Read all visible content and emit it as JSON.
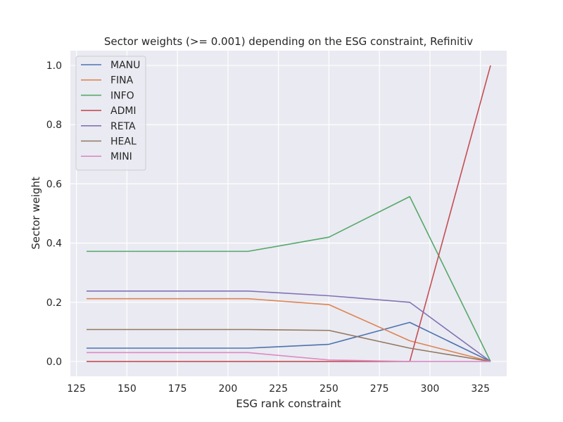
{
  "chart_data": {
    "type": "line",
    "title": "Sector weights (>= 0.001) depending on the ESG constraint, Refinitiv",
    "xlabel": "ESG rank constraint",
    "ylabel": "Sector weight",
    "xlim": [
      122,
      338
    ],
    "ylim": [
      -0.05,
      1.05
    ],
    "xticks": [
      125,
      150,
      175,
      200,
      225,
      250,
      275,
      300,
      325
    ],
    "yticks": [
      0.0,
      0.2,
      0.4,
      0.6,
      0.8,
      1.0
    ],
    "xtick_labels": [
      "125",
      "150",
      "175",
      "200",
      "225",
      "250",
      "275",
      "300",
      "325"
    ],
    "ytick_labels": [
      "0.0",
      "0.2",
      "0.4",
      "0.6",
      "0.8",
      "1.0"
    ],
    "grid": true,
    "legend_position": "top-left",
    "x": [
      130,
      210,
      250,
      290,
      330
    ],
    "series": [
      {
        "name": "MANU",
        "color": "#4c72b0",
        "values": [
          0.045,
          0.045,
          0.058,
          0.132,
          0.0
        ]
      },
      {
        "name": "FINA",
        "color": "#dd8452",
        "values": [
          0.212,
          0.212,
          0.192,
          0.07,
          0.0
        ]
      },
      {
        "name": "INFO",
        "color": "#55a868",
        "values": [
          0.372,
          0.372,
          0.42,
          0.557,
          0.0
        ]
      },
      {
        "name": "ADMI",
        "color": "#c44e52",
        "values": [
          0.0,
          0.0,
          0.0,
          0.0,
          1.0
        ]
      },
      {
        "name": "RETA",
        "color": "#8172b3",
        "values": [
          0.238,
          0.238,
          0.222,
          0.2,
          0.0
        ]
      },
      {
        "name": "HEAL",
        "color": "#937860",
        "values": [
          0.108,
          0.108,
          0.105,
          0.045,
          0.0
        ]
      },
      {
        "name": "MINI",
        "color": "#da8bc3",
        "values": [
          0.03,
          0.03,
          0.005,
          0.0,
          0.0
        ]
      }
    ]
  }
}
